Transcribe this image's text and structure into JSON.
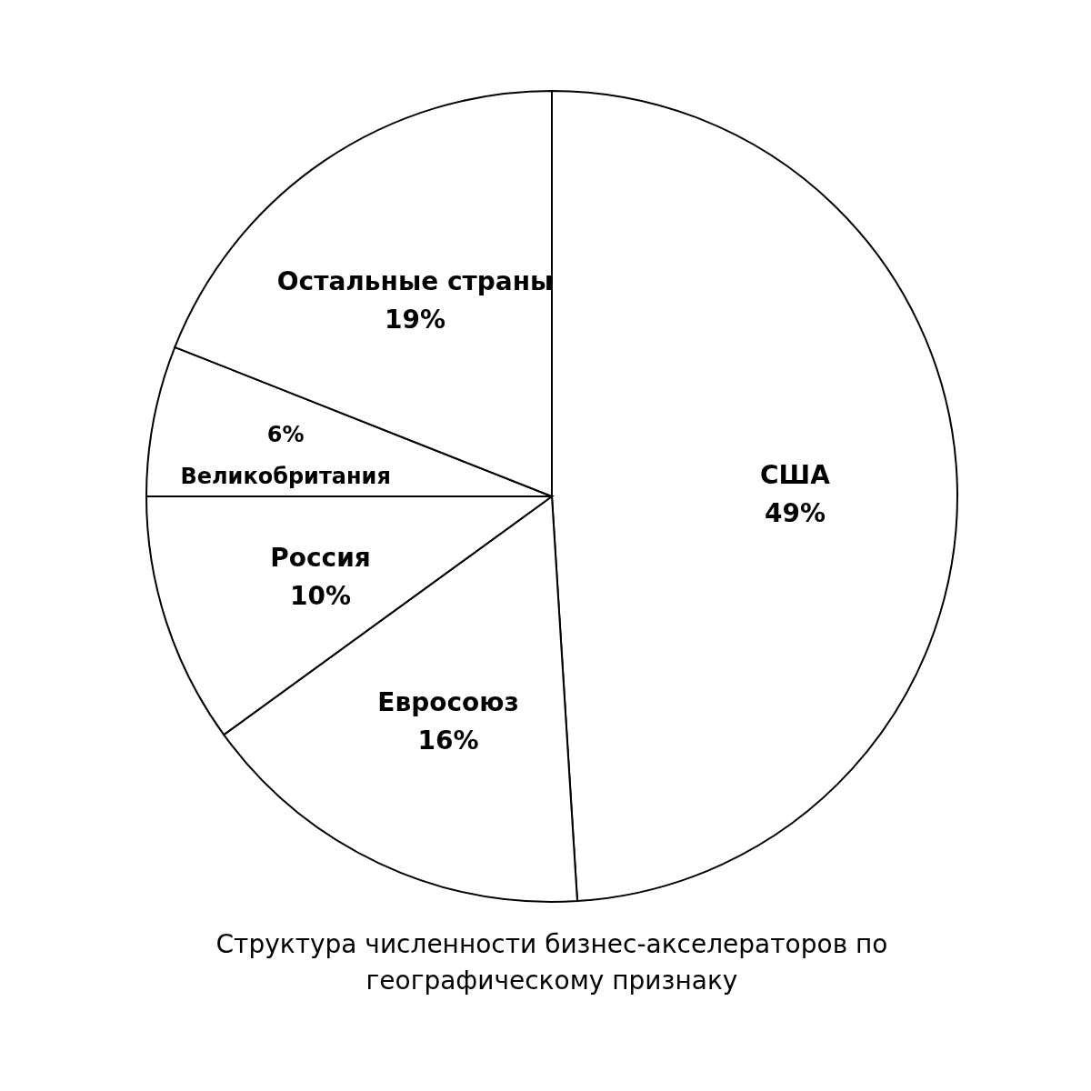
{
  "chart_data": {
    "type": "pie",
    "title": "Структура численности бизнес-акселераторов по географическому признаку",
    "categories": [
      "США",
      "Евросоюз",
      "Россия",
      "Великобритания",
      "Остальные страны"
    ],
    "values": [
      49,
      16,
      10,
      6,
      19
    ],
    "value_labels": [
      "49%",
      "16%",
      "10%",
      "6%",
      "19%"
    ],
    "colors": [
      "#ffffff",
      "#ffffff",
      "#ffffff",
      "#ffffff",
      "#ffffff"
    ]
  }
}
